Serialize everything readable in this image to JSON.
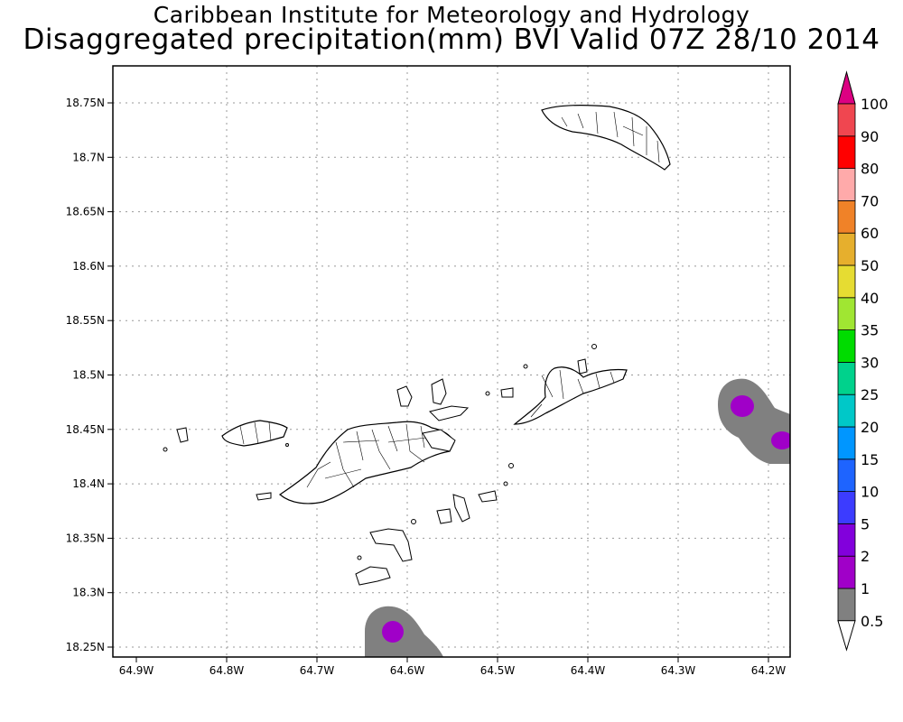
{
  "header": {
    "title": "Caribbean Institute for Meteorology and Hydrology",
    "subtitle": "Disaggregated precipitation(mm) BVI Valid 07Z 28/10 2014"
  },
  "map": {
    "lat_labels": [
      "18.75N",
      "18.7N",
      "18.65N",
      "18.6N",
      "18.55N",
      "18.5N",
      "18.45N",
      "18.4N",
      "18.35N",
      "18.3N",
      "18.25N"
    ],
    "lon_labels": [
      "64.9W",
      "64.8W",
      "64.7W",
      "64.6W",
      "64.5W",
      "64.4W",
      "64.3W",
      "64.2W"
    ],
    "lon_range": [
      -64.9,
      -64.15
    ],
    "lat_range": [
      18.24,
      18.79
    ],
    "grid": true,
    "grid_style": "dotted"
  },
  "legend": {
    "placement": "right",
    "levels": [
      "0.5",
      "1",
      "2",
      "5",
      "10",
      "15",
      "20",
      "25",
      "30",
      "35",
      "40",
      "50",
      "60",
      "70",
      "80",
      "90",
      "100"
    ],
    "colors": [
      "#808080",
      "#a000c8",
      "#8200dc",
      "#3c3cff",
      "#1e64ff",
      "#0096ff",
      "#00c8c8",
      "#00d28c",
      "#00dc00",
      "#a0e632",
      "#e6dc32",
      "#e6af2d",
      "#f08228",
      "#ffaaaa",
      "#ff0000",
      "#f04650",
      "#dc0082"
    ],
    "bottom_arrow_color": "#ffffff",
    "top_arrow_color": "#dc0082"
  }
}
